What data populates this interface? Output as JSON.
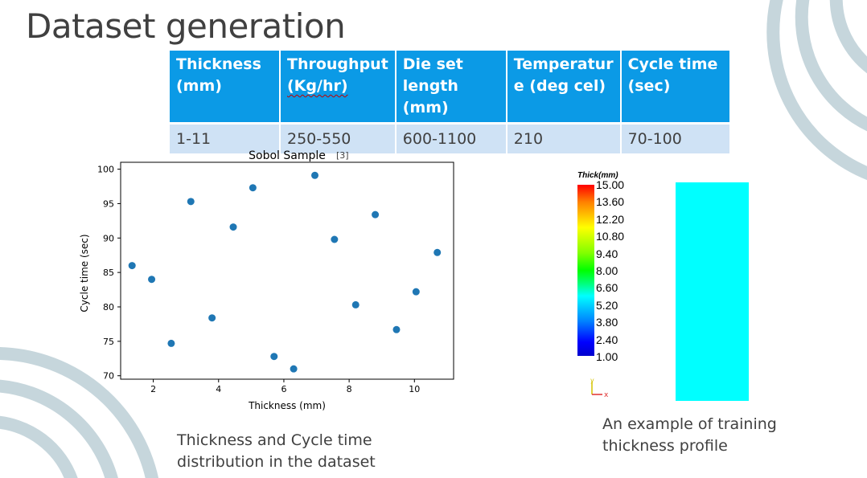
{
  "slide": {
    "title": "Dataset generation",
    "caption_left": [
      "Thickness and Cycle time",
      "distribution in the dataset"
    ],
    "caption_right": [
      "An example of training",
      "thickness profile"
    ]
  },
  "table": {
    "headers": [
      [
        "Thickness",
        "(mm)"
      ],
      [
        "Throughput",
        "(Kg/hr)"
      ],
      [
        "Die set",
        "length (mm)"
      ],
      [
        "Temperatur",
        "e (deg cel)"
      ],
      [
        "Cycle time",
        "(sec)"
      ]
    ],
    "row": [
      "1-11",
      "250-550",
      "600-1100",
      "210",
      "70-100"
    ],
    "header_color": "#0b9ae6",
    "row_color": "#cfe2f5"
  },
  "chart_data": {
    "type": "scatter",
    "title": "Sobol Sample",
    "title_ref": "[3]",
    "xlabel": "Thickness (mm)",
    "ylabel": "Cycle time (sec)",
    "xlim": [
      1.0,
      11.2
    ],
    "ylim": [
      69.5,
      101
    ],
    "xticks": [
      2,
      4,
      6,
      8,
      10
    ],
    "yticks": [
      70,
      75,
      80,
      85,
      90,
      95,
      100
    ],
    "grid": false,
    "point_color": "#1f77b4",
    "x": [
      1.35,
      1.95,
      2.55,
      3.15,
      3.8,
      4.45,
      5.05,
      5.7,
      6.3,
      6.95,
      7.55,
      8.2,
      8.8,
      9.45,
      10.05,
      10.7
    ],
    "y": [
      86.0,
      84.0,
      74.7,
      95.3,
      78.4,
      91.6,
      97.3,
      72.8,
      71.0,
      99.1,
      89.8,
      80.3,
      93.4,
      76.7,
      82.2,
      87.9
    ]
  },
  "colorbar": {
    "title": "Thick(mm)",
    "labels": [
      "15.00",
      "13.60",
      "12.20",
      "10.80",
      "9.40",
      "8.00",
      "6.60",
      "5.20",
      "3.80",
      "2.40",
      "1.00"
    ],
    "profile_color": "#00ffff"
  },
  "axes_triad": {
    "x_label": "x",
    "y_label": "y"
  }
}
